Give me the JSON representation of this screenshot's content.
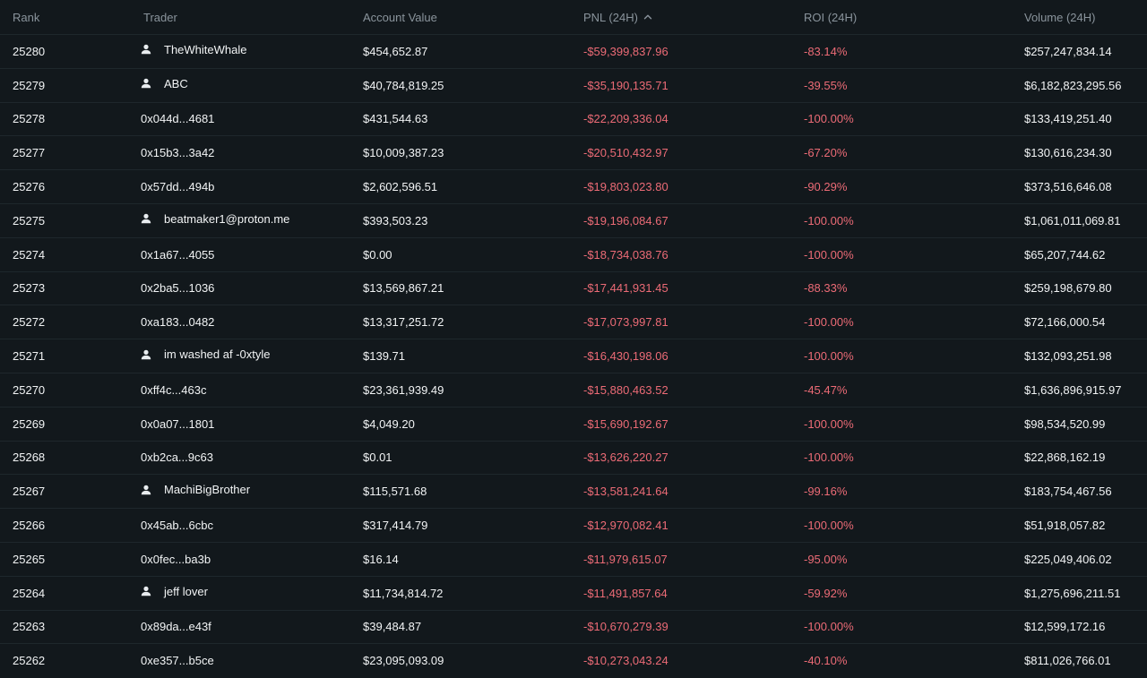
{
  "columns": {
    "rank": "Rank",
    "trader": "Trader",
    "account_value": "Account Value",
    "pnl": "PNL (24H)",
    "roi": "ROI (24H)",
    "volume": "Volume (24H)"
  },
  "sort": {
    "column": "pnl",
    "direction": "ascending",
    "icon": "chevron-up-icon"
  },
  "colors": {
    "background": "#12181c",
    "negative": "#ec6b76",
    "header_text": "#8a949c"
  },
  "rows": [
    {
      "rank": "25280",
      "trader": "TheWhiteWhale",
      "named": true,
      "account_value": "$454,652.87",
      "pnl": "-$59,399,837.96",
      "roi": "-83.14%",
      "volume": "$257,247,834.14"
    },
    {
      "rank": "25279",
      "trader": "ABC",
      "named": true,
      "account_value": "$40,784,819.25",
      "pnl": "-$35,190,135.71",
      "roi": "-39.55%",
      "volume": "$6,182,823,295.56"
    },
    {
      "rank": "25278",
      "trader": "0x044d...4681",
      "named": false,
      "account_value": "$431,544.63",
      "pnl": "-$22,209,336.04",
      "roi": "-100.00%",
      "volume": "$133,419,251.40"
    },
    {
      "rank": "25277",
      "trader": "0x15b3...3a42",
      "named": false,
      "account_value": "$10,009,387.23",
      "pnl": "-$20,510,432.97",
      "roi": "-67.20%",
      "volume": "$130,616,234.30"
    },
    {
      "rank": "25276",
      "trader": "0x57dd...494b",
      "named": false,
      "account_value": "$2,602,596.51",
      "pnl": "-$19,803,023.80",
      "roi": "-90.29%",
      "volume": "$373,516,646.08"
    },
    {
      "rank": "25275",
      "trader": "beatmaker1@proton.me",
      "named": true,
      "account_value": "$393,503.23",
      "pnl": "-$19,196,084.67",
      "roi": "-100.00%",
      "volume": "$1,061,011,069.81"
    },
    {
      "rank": "25274",
      "trader": "0x1a67...4055",
      "named": false,
      "account_value": "$0.00",
      "pnl": "-$18,734,038.76",
      "roi": "-100.00%",
      "volume": "$65,207,744.62"
    },
    {
      "rank": "25273",
      "trader": "0x2ba5...1036",
      "named": false,
      "account_value": "$13,569,867.21",
      "pnl": "-$17,441,931.45",
      "roi": "-88.33%",
      "volume": "$259,198,679.80"
    },
    {
      "rank": "25272",
      "trader": "0xa183...0482",
      "named": false,
      "account_value": "$13,317,251.72",
      "pnl": "-$17,073,997.81",
      "roi": "-100.00%",
      "volume": "$72,166,000.54"
    },
    {
      "rank": "25271",
      "trader": "im washed af -0xtyle",
      "named": true,
      "account_value": "$139.71",
      "pnl": "-$16,430,198.06",
      "roi": "-100.00%",
      "volume": "$132,093,251.98"
    },
    {
      "rank": "25270",
      "trader": "0xff4c...463c",
      "named": false,
      "account_value": "$23,361,939.49",
      "pnl": "-$15,880,463.52",
      "roi": "-45.47%",
      "volume": "$1,636,896,915.97"
    },
    {
      "rank": "25269",
      "trader": "0x0a07...1801",
      "named": false,
      "account_value": "$4,049.20",
      "pnl": "-$15,690,192.67",
      "roi": "-100.00%",
      "volume": "$98,534,520.99"
    },
    {
      "rank": "25268",
      "trader": "0xb2ca...9c63",
      "named": false,
      "account_value": "$0.01",
      "pnl": "-$13,626,220.27",
      "roi": "-100.00%",
      "volume": "$22,868,162.19"
    },
    {
      "rank": "25267",
      "trader": "MachiBigBrother",
      "named": true,
      "account_value": "$115,571.68",
      "pnl": "-$13,581,241.64",
      "roi": "-99.16%",
      "volume": "$183,754,467.56"
    },
    {
      "rank": "25266",
      "trader": "0x45ab...6cbc",
      "named": false,
      "account_value": "$317,414.79",
      "pnl": "-$12,970,082.41",
      "roi": "-100.00%",
      "volume": "$51,918,057.82"
    },
    {
      "rank": "25265",
      "trader": "0x0fec...ba3b",
      "named": false,
      "account_value": "$16.14",
      "pnl": "-$11,979,615.07",
      "roi": "-95.00%",
      "volume": "$225,049,406.02"
    },
    {
      "rank": "25264",
      "trader": "jeff lover",
      "named": true,
      "account_value": "$11,734,814.72",
      "pnl": "-$11,491,857.64",
      "roi": "-59.92%",
      "volume": "$1,275,696,211.51"
    },
    {
      "rank": "25263",
      "trader": "0x89da...e43f",
      "named": false,
      "account_value": "$39,484.87",
      "pnl": "-$10,670,279.39",
      "roi": "-100.00%",
      "volume": "$12,599,172.16"
    },
    {
      "rank": "25262",
      "trader": "0xe357...b5ce",
      "named": false,
      "account_value": "$23,095,093.09",
      "pnl": "-$10,273,043.24",
      "roi": "-40.10%",
      "volume": "$811,026,766.01"
    }
  ]
}
